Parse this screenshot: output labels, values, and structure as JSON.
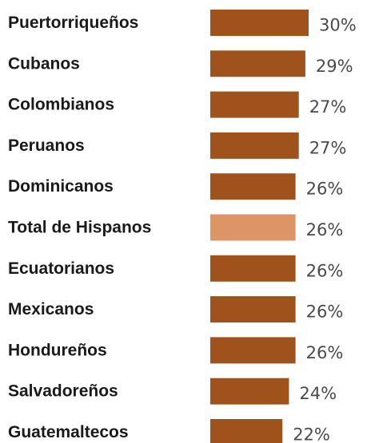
{
  "chart_data": {
    "type": "bar",
    "orientation": "horizontal",
    "categories": [
      "Puertorriqueños",
      "Cubanos",
      "Colombianos",
      "Peruanos",
      "Dominicanos",
      "Total de Hispanos",
      "Ecuatorianos",
      "Mexicanos",
      "Hondureños",
      "Salvadoreños",
      "Guatemaltecos"
    ],
    "values": [
      30,
      29,
      27,
      27,
      26,
      26,
      26,
      26,
      26,
      24,
      22
    ],
    "value_labels": [
      "30%",
      "29%",
      "27%",
      "27%",
      "26%",
      "26%",
      "26%",
      "26%",
      "26%",
      "24%",
      "22%"
    ],
    "highlight_category": "Total de Hispanos",
    "colors": {
      "bar": "#a0521c",
      "highlight": "#dd9467",
      "label": "#1a1a1a",
      "value": "#4a4a4a"
    },
    "grid": false,
    "legend": "none"
  }
}
